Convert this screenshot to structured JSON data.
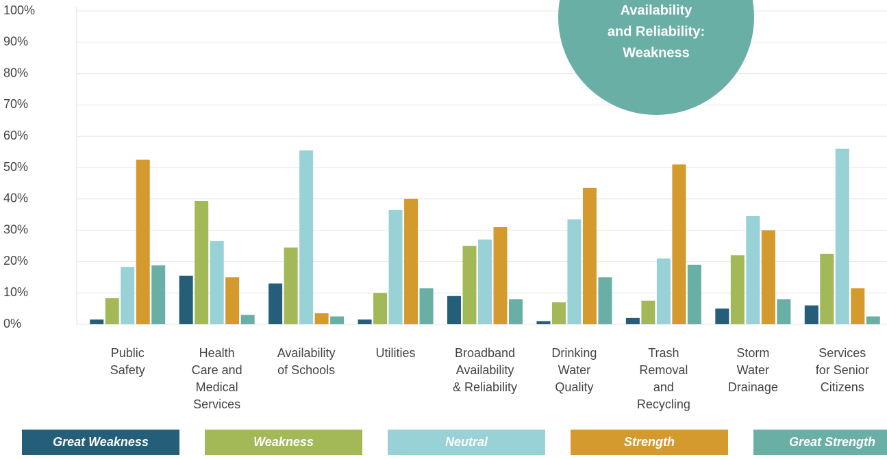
{
  "chart_data": {
    "type": "bar",
    "categories": [
      [
        "Public",
        "Safety"
      ],
      [
        "Health",
        "Care and",
        "Medical",
        "Services"
      ],
      [
        "Availability",
        "of Schools"
      ],
      [
        "Utilities"
      ],
      [
        "Broadband",
        "Availability",
        "& Reliability"
      ],
      [
        "Drinking",
        "Water",
        "Quality"
      ],
      [
        "Trash",
        "Removal",
        "and",
        "Recycling"
      ],
      [
        "Storm",
        "Water",
        "Drainage"
      ],
      [
        "Services",
        "for Senior",
        "Citizens"
      ]
    ],
    "series": [
      {
        "name": "Great Weakness",
        "color": "#245e78",
        "values": [
          1.5,
          15.5,
          13,
          1.5,
          9,
          1,
          2,
          5,
          6
        ]
      },
      {
        "name": "Weakness",
        "color": "#a3b957",
        "values": [
          8.3,
          39.3,
          24.5,
          10,
          25,
          7,
          7.5,
          22,
          22.5
        ]
      },
      {
        "name": "Neutral",
        "color": "#98d1d6",
        "values": [
          18.3,
          26.6,
          55.5,
          36.5,
          27,
          33.5,
          21,
          34.5,
          56
        ]
      },
      {
        "name": "Strength",
        "color": "#d49a2e",
        "values": [
          52.5,
          15,
          3.5,
          40,
          31,
          43.5,
          51,
          30,
          11.5
        ]
      },
      {
        "name": "Great Strength",
        "color": "#6aafa5",
        "values": [
          18.8,
          3,
          2.5,
          11.5,
          8,
          15,
          19,
          8,
          2.5
        ]
      }
    ],
    "ylim": [
      0,
      100
    ],
    "yticks": [
      {
        "value": 0,
        "label": "0%"
      },
      {
        "value": 10,
        "label": "10%"
      },
      {
        "value": 20,
        "label": "20%"
      },
      {
        "value": 30,
        "label": "30%"
      },
      {
        "value": 40,
        "label": "40%"
      },
      {
        "value": 50,
        "label": "50%"
      },
      {
        "value": 60,
        "label": "60%"
      },
      {
        "value": 70,
        "label": "70%"
      },
      {
        "value": 80,
        "label": "80%"
      },
      {
        "value": 90,
        "label": "90%"
      },
      {
        "value": 100,
        "label": "100%"
      }
    ],
    "grid": true,
    "legend": "bottom",
    "annotation": {
      "lines": [
        "Availability",
        "and Reliability:",
        "Weakness"
      ],
      "color": "#6aafa5"
    }
  }
}
